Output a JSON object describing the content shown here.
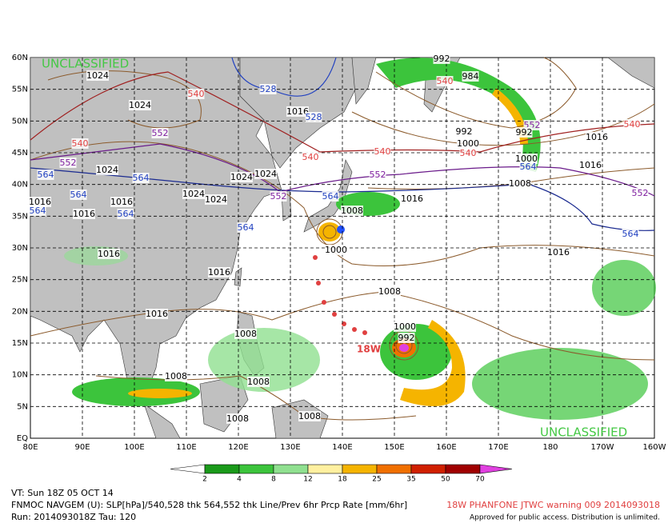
{
  "watermarks": [
    "UNCLASSIFIED",
    "UNCLASSIFIED"
  ],
  "lat_labels": [
    "60N",
    "55N",
    "50N",
    "45N",
    "40N",
    "35N",
    "30N",
    "25N",
    "20N",
    "15N",
    "10N",
    "5N",
    "EQ"
  ],
  "lon_labels": [
    "80E",
    "90E",
    "100E",
    "110E",
    "120E",
    "130E",
    "140E",
    "150E",
    "160E",
    "170E",
    "180",
    "170W",
    "160W"
  ],
  "colorbar": {
    "ticks": [
      2,
      4,
      8,
      12,
      18,
      25,
      35,
      50,
      70
    ],
    "colors": [
      "#ffffff",
      "#1a9a1a",
      "#3cc43c",
      "#90e090",
      "#fff0a0",
      "#f5b400",
      "#f07000",
      "#d02000",
      "#a00000",
      "#e040e0"
    ]
  },
  "contour_labels": [
    {
      "text": "1024",
      "color": "#000000"
    },
    {
      "text": "540",
      "color": "#e04040"
    },
    {
      "text": "528",
      "color": "#2040c0"
    },
    {
      "text": "1024",
      "color": "#000000"
    },
    {
      "text": "1016",
      "color": "#000000"
    },
    {
      "text": "528",
      "color": "#2040c0"
    },
    {
      "text": "552",
      "color": "#8020a0"
    },
    {
      "text": "540",
      "color": "#e04040"
    },
    {
      "text": "552",
      "color": "#8020a0"
    },
    {
      "text": "1024",
      "color": "#000000"
    },
    {
      "text": "564",
      "color": "#2040c0"
    },
    {
      "text": "564",
      "color": "#2040c0"
    },
    {
      "text": "540",
      "color": "#e04040"
    },
    {
      "text": "540",
      "color": "#e04040"
    },
    {
      "text": "552",
      "color": "#8020a0"
    },
    {
      "text": "1024",
      "color": "#000000"
    },
    {
      "text": "1024",
      "color": "#000000"
    },
    {
      "text": "1024",
      "color": "#000000"
    },
    {
      "text": "1024",
      "color": "#000000"
    },
    {
      "text": "552",
      "color": "#8020a0"
    },
    {
      "text": "564",
      "color": "#2040c0"
    },
    {
      "text": "1016",
      "color": "#000000"
    },
    {
      "text": "564",
      "color": "#2040c0"
    },
    {
      "text": "1016",
      "color": "#000000"
    },
    {
      "text": "1008",
      "color": "#000000"
    },
    {
      "text": "1016",
      "color": "#000000"
    },
    {
      "text": "564",
      "color": "#2040c0"
    },
    {
      "text": "564",
      "color": "#2040c0"
    },
    {
      "text": "1000",
      "color": "#000000"
    },
    {
      "text": "1016",
      "color": "#000000"
    },
    {
      "text": "1016",
      "color": "#000000"
    },
    {
      "text": "1016",
      "color": "#000000"
    },
    {
      "text": "1008",
      "color": "#000000"
    },
    {
      "text": "1016",
      "color": "#000000"
    },
    {
      "text": "1000",
      "color": "#000000"
    },
    {
      "text": "992",
      "color": "#000000"
    },
    {
      "text": "1008",
      "color": "#000000"
    },
    {
      "text": "1008",
      "color": "#000000"
    },
    {
      "text": "1008",
      "color": "#000000"
    },
    {
      "text": "1008",
      "color": "#000000"
    },
    {
      "text": "1008",
      "color": "#000000"
    },
    {
      "text": "984",
      "color": "#000000"
    },
    {
      "text": "540",
      "color": "#e04040"
    },
    {
      "text": "992",
      "color": "#000000"
    },
    {
      "text": "1000",
      "color": "#000000"
    },
    {
      "text": "540",
      "color": "#e04040"
    },
    {
      "text": "552",
      "color": "#8020a0"
    },
    {
      "text": "992",
      "color": "#000000"
    },
    {
      "text": "1000",
      "color": "#000000"
    },
    {
      "text": "564",
      "color": "#2040c0"
    },
    {
      "text": "1008",
      "color": "#000000"
    },
    {
      "text": "1016",
      "color": "#000000"
    },
    {
      "text": "1016",
      "color": "#000000"
    },
    {
      "text": "540",
      "color": "#e04040"
    },
    {
      "text": "552",
      "color": "#8020a0"
    },
    {
      "text": "564",
      "color": "#2040c0"
    },
    {
      "text": "1016",
      "color": "#000000"
    },
    {
      "text": "564",
      "color": "#2040c0"
    },
    {
      "text": "992",
      "color": "#000000"
    }
  ],
  "storm_label": "18W",
  "footer": {
    "valid": "VT: Sun 18Z 05 OCT 14",
    "model": "FNMOC NAVGEM (U): SLP[hPa]/540,528 thk 564,552 thk Line/Prev 6hr Prcp Rate [mm/6hr]",
    "run": "Run: 2014093018Z Tau: 120",
    "warning": "18W PHANFONE JTWC warning 009 2014093018",
    "approval": "Approved for public access. Distribution is unlimited."
  }
}
